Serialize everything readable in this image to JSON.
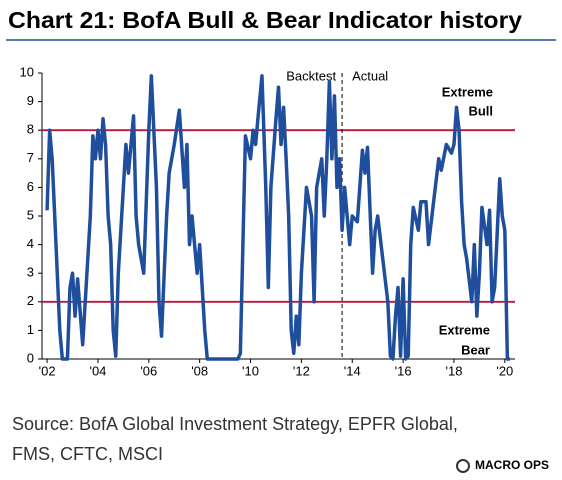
{
  "chart_data": {
    "type": "line",
    "title": "Chart 21: BofA Bull & Bear Indicator history",
    "color": "#1f4e9c",
    "reference_lines": [
      8,
      2
    ],
    "reference_color": "#c0143c",
    "divider_x": 2013.6,
    "annotations": {
      "left_of_divider": "Backtest",
      "right_of_divider": "Actual",
      "upper": [
        "Extreme",
        "Bull"
      ],
      "lower": [
        "Extreme",
        "Bear"
      ]
    },
    "source": [
      "Source: BofA Global Investment Strategy, EPFR Global,",
      "FMS, CFTC, MSCI"
    ],
    "logo": "MACRO OPS",
    "xlim": [
      2001.8,
      2020.4
    ],
    "ylim": [
      0,
      10
    ],
    "yticks": [
      0,
      1,
      2,
      3,
      4,
      5,
      6,
      7,
      8,
      9,
      10
    ],
    "xticks": [
      {
        "value": 2002,
        "label": "'02"
      },
      {
        "value": 2004,
        "label": "'04"
      },
      {
        "value": 2006,
        "label": "'06"
      },
      {
        "value": 2008,
        "label": "'08"
      },
      {
        "value": 2010,
        "label": "'10"
      },
      {
        "value": 2012,
        "label": "'12"
      },
      {
        "value": 2014,
        "label": "'14"
      },
      {
        "value": 2016,
        "label": "'16"
      },
      {
        "value": 2018,
        "label": "'18"
      },
      {
        "value": 2020,
        "label": "'20"
      }
    ],
    "x": [
      2002.0,
      2002.1,
      2002.2,
      2002.35,
      2002.5,
      2002.6,
      2002.8,
      2002.9,
      2003.0,
      2003.1,
      2003.2,
      2003.4,
      2003.5,
      2003.7,
      2003.8,
      2003.9,
      2004.0,
      2004.1,
      2004.2,
      2004.3,
      2004.4,
      2004.5,
      2004.6,
      2004.7,
      2004.8,
      2005.0,
      2005.1,
      2005.2,
      2005.4,
      2005.5,
      2005.6,
      2005.8,
      2006.0,
      2006.1,
      2006.3,
      2006.4,
      2006.5,
      2006.7,
      2006.8,
      2007.0,
      2007.2,
      2007.4,
      2007.5,
      2007.6,
      2007.7,
      2007.9,
      2008.0,
      2008.2,
      2008.3,
      2008.5,
      2009.0,
      2009.5,
      2009.6,
      2009.7,
      2009.8,
      2010.0,
      2010.1,
      2010.2,
      2010.3,
      2010.45,
      2010.6,
      2010.7,
      2010.8,
      2011.0,
      2011.1,
      2011.2,
      2011.3,
      2011.4,
      2011.5,
      2011.6,
      2011.7,
      2011.8,
      2011.9,
      2012.0,
      2012.2,
      2012.4,
      2012.5,
      2012.6,
      2012.8,
      2012.9,
      2013.0,
      2013.1,
      2013.2,
      2013.3,
      2013.4,
      2013.5,
      2013.6,
      2013.7,
      2013.9,
      2014.0,
      2014.2,
      2014.4,
      2014.5,
      2014.6,
      2014.8,
      2014.9,
      2015.0,
      2015.2,
      2015.4,
      2015.5,
      2015.6,
      2015.7,
      2015.8,
      2015.9,
      2016.0,
      2016.1,
      2016.2,
      2016.3,
      2016.4,
      2016.6,
      2016.7,
      2016.9,
      2017.0,
      2017.2,
      2017.4,
      2017.5,
      2017.7,
      2017.9,
      2018.0,
      2018.1,
      2018.2,
      2018.3,
      2018.4,
      2018.5,
      2018.7,
      2018.8,
      2018.9,
      2019.0,
      2019.1,
      2019.3,
      2019.4,
      2019.5,
      2019.6,
      2019.8,
      2019.9,
      2020.0,
      2020.1,
      2020.2
    ],
    "values": [
      5.2,
      8.0,
      7,
      4,
      1,
      0,
      0,
      2.5,
      3,
      1.5,
      2.8,
      0.5,
      2,
      5,
      7.8,
      7,
      8,
      7,
      8.4,
      7.5,
      5,
      4,
      1,
      0.1,
      3,
      6,
      7.5,
      6.5,
      8.5,
      5,
      4,
      3,
      8,
      9.9,
      6,
      2,
      0.8,
      5,
      6.5,
      7.5,
      8.7,
      6,
      7.5,
      4,
      5,
      3,
      4,
      1,
      0,
      0,
      0,
      0,
      0.2,
      4,
      7.8,
      7,
      8,
      7.5,
      8.5,
      9.9,
      6,
      2.5,
      6,
      8.4,
      9.5,
      7.5,
      8.8,
      7,
      5,
      1,
      0.2,
      1.5,
      0.5,
      3,
      6,
      5,
      2,
      6,
      7,
      5,
      7,
      9.7,
      7,
      9.2,
      6,
      7,
      4.5,
      6,
      4,
      5,
      4.8,
      7.3,
      6.5,
      7.4,
      3,
      4.5,
      5,
      3.5,
      2,
      0.1,
      0,
      1.5,
      2.5,
      0.1,
      2.8,
      0,
      0.1,
      4,
      5.3,
      4.5,
      5.5,
      5.5,
      4,
      5.5,
      7,
      6.6,
      7.5,
      7.2,
      7.5,
      8.8,
      8,
      5.5,
      4,
      3.5,
      2,
      4,
      1.5,
      3,
      5.3,
      4,
      5.2,
      2,
      2.5,
      6.3,
      5,
      4.5,
      0,
      0
    ]
  }
}
